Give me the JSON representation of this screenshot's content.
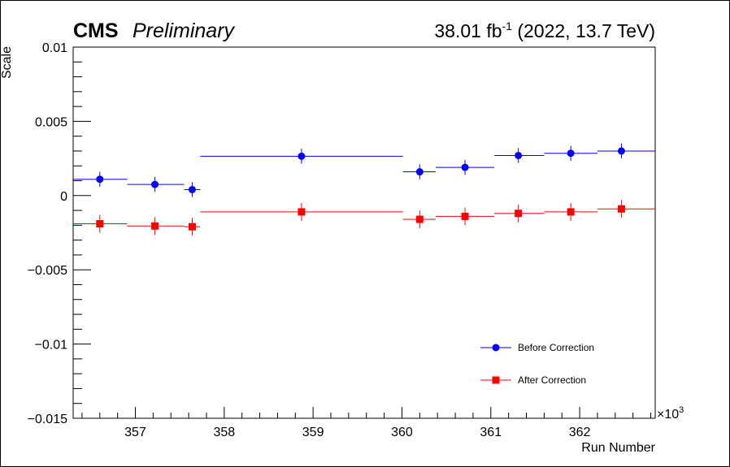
{
  "header": {
    "experiment": "CMS",
    "status": "Preliminary",
    "lumi_value": "38.01 fb",
    "lumi_exp": "-1",
    "lumi_suffix": " (2022, 13.7 TeV)"
  },
  "chart_data": {
    "type": "scatter",
    "title": "",
    "xlabel": "Run Number",
    "ylabel": "Scale",
    "x_multiplier_label": "×10",
    "x_multiplier_exp": "3",
    "xlim": [
      356.3,
      362.85
    ],
    "ylim": [
      -0.015,
      0.01
    ],
    "x_ticks": [
      357,
      358,
      359,
      360,
      361,
      362
    ],
    "x_tick_labels": [
      "357",
      "358",
      "359",
      "360",
      "361",
      "362"
    ],
    "y_ticks": [
      -0.015,
      -0.01,
      -0.005,
      0,
      0.005,
      0.01
    ],
    "y_tick_labels": [
      "−0.015",
      "−0.01",
      "−0.005",
      "0",
      "0.005",
      "0.01"
    ],
    "grid": false,
    "legend_position": "bottom-right",
    "series": [
      {
        "name": "Before Correction",
        "color": "#0000ff",
        "marker": "circle",
        "points": [
          {
            "x": 356.6,
            "xlo": 356.3,
            "xhi": 356.91,
            "y": 0.0011,
            "yerr": 0.0005
          },
          {
            "x": 357.22,
            "xlo": 356.91,
            "xhi": 357.55,
            "y": 0.00075,
            "yerr": 0.0005
          },
          {
            "x": 357.64,
            "xlo": 357.55,
            "xhi": 357.73,
            "y": 0.0004,
            "yerr": 0.0005
          },
          {
            "x": 358.87,
            "xlo": 357.73,
            "xhi": 360.01,
            "y": 0.00265,
            "yerr": 0.0005
          },
          {
            "x": 360.2,
            "xlo": 360.01,
            "xhi": 360.38,
            "y": 0.0016,
            "yerr": 0.0005
          },
          {
            "x": 360.71,
            "xlo": 360.38,
            "xhi": 361.04,
            "y": 0.0019,
            "yerr": 0.0005
          },
          {
            "x": 361.31,
            "xlo": 361.04,
            "xhi": 361.6,
            "y": 0.0027,
            "yerr": 0.0005
          },
          {
            "x": 361.9,
            "xlo": 361.6,
            "xhi": 362.2,
            "y": 0.00285,
            "yerr": 0.0005
          },
          {
            "x": 362.47,
            "xlo": 362.2,
            "xhi": 362.85,
            "y": 0.003,
            "yerr": 0.0005
          }
        ]
      },
      {
        "name": "After Correction",
        "color": "#ff0000",
        "marker": "square",
        "points": [
          {
            "x": 356.6,
            "xlo": 356.3,
            "xhi": 356.91,
            "y": -0.0019,
            "yerr": 0.0006
          },
          {
            "x": 357.22,
            "xlo": 356.91,
            "xhi": 357.55,
            "y": -0.00205,
            "yerr": 0.0006
          },
          {
            "x": 357.64,
            "xlo": 357.55,
            "xhi": 357.73,
            "y": -0.0021,
            "yerr": 0.0006
          },
          {
            "x": 358.87,
            "xlo": 357.73,
            "xhi": 360.01,
            "y": -0.0011,
            "yerr": 0.0006
          },
          {
            "x": 360.2,
            "xlo": 360.01,
            "xhi": 360.38,
            "y": -0.0016,
            "yerr": 0.0006
          },
          {
            "x": 360.71,
            "xlo": 360.38,
            "xhi": 361.04,
            "y": -0.0014,
            "yerr": 0.0006
          },
          {
            "x": 361.31,
            "xlo": 361.04,
            "xhi": 361.6,
            "y": -0.0012,
            "yerr": 0.0006
          },
          {
            "x": 361.9,
            "xlo": 361.6,
            "xhi": 362.2,
            "y": -0.0011,
            "yerr": 0.0006
          },
          {
            "x": 362.47,
            "xlo": 362.2,
            "xhi": 362.85,
            "y": -0.0009,
            "yerr": 0.0006
          }
        ]
      }
    ]
  }
}
